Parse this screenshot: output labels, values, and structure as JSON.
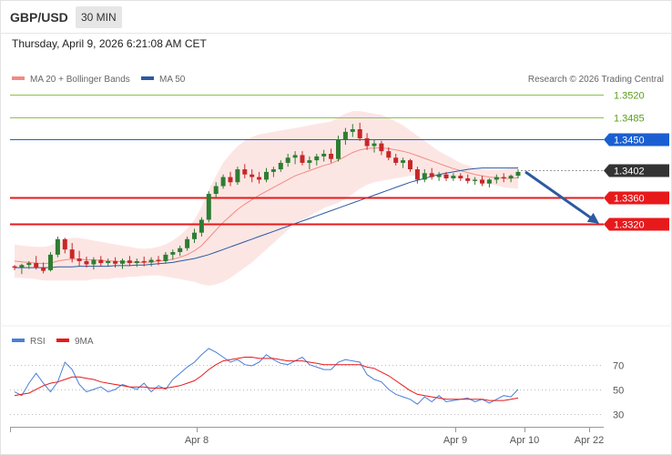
{
  "header": {
    "symbol": "GBP/USD",
    "timeframe": "30 MIN",
    "datetime": "Thursday, April 9, 2026 6:21:08 AM CET"
  },
  "colors": {
    "ma20": "#f28b82",
    "ma50": "#2c5aa0",
    "bull": "#2e7d32",
    "bear": "#c62828",
    "resistance_green": "#8bc34a",
    "pivot_blue": "#1a5fd1",
    "support_red": "#e8191b",
    "current": "#333333",
    "arrow": "#2c5aa0",
    "rsi": "#4a7fd8",
    "rsi_ma": "#e8191b"
  },
  "chart_data": [
    {
      "type": "candlestick",
      "legend": [
        {
          "label": "MA 20 + Bollinger Bands",
          "color": "#f28b82"
        },
        {
          "label": "MA 50",
          "color": "#2c5aa0"
        }
      ],
      "credit": "Research © 2026 Trading Central",
      "ylim": [
        1.3162,
        1.3542
      ],
      "levels": [
        {
          "value": 1.352,
          "label": "1.3520",
          "kind": "resistance",
          "style": "thin-green"
        },
        {
          "value": 1.3485,
          "label": "1.3485",
          "kind": "resistance",
          "style": "thin-green"
        },
        {
          "value": 1.345,
          "label": "1.3450",
          "kind": "pivot",
          "style": "blue"
        },
        {
          "value": 1.3402,
          "label": "1.3402",
          "kind": "current",
          "style": "dotted"
        },
        {
          "value": 1.336,
          "label": "1.3360",
          "kind": "support",
          "style": "red"
        },
        {
          "value": 1.332,
          "label": "1.3320",
          "kind": "support",
          "style": "red"
        }
      ],
      "x_ticks": [
        "Apr 8",
        "Apr 9",
        "Apr 10",
        "Apr 22"
      ],
      "candles": [
        [
          1.3254,
          1.3256,
          1.3248,
          1.3252
        ],
        [
          1.3252,
          1.3258,
          1.3242,
          1.3256
        ],
        [
          1.3256,
          1.3262,
          1.325,
          1.3259
        ],
        [
          1.3259,
          1.327,
          1.3249,
          1.3252
        ],
        [
          1.3252,
          1.326,
          1.3243,
          1.3247
        ],
        [
          1.3248,
          1.3276,
          1.3246,
          1.3272
        ],
        [
          1.3272,
          1.33,
          1.3268,
          1.3296
        ],
        [
          1.3296,
          1.3298,
          1.3274,
          1.328
        ],
        [
          1.328,
          1.329,
          1.326,
          1.3266
        ],
        [
          1.3266,
          1.3278,
          1.3254,
          1.3262
        ],
        [
          1.3262,
          1.3269,
          1.3252,
          1.3257
        ],
        [
          1.3257,
          1.3268,
          1.3249,
          1.3264
        ],
        [
          1.3264,
          1.327,
          1.3254,
          1.3259
        ],
        [
          1.3259,
          1.3266,
          1.3254,
          1.3262
        ],
        [
          1.3262,
          1.3268,
          1.3252,
          1.3258
        ],
        [
          1.3258,
          1.3266,
          1.325,
          1.3263
        ],
        [
          1.3263,
          1.327,
          1.3254,
          1.3259
        ],
        [
          1.3259,
          1.3266,
          1.3253,
          1.3262
        ],
        [
          1.3262,
          1.3269,
          1.3254,
          1.326
        ],
        [
          1.326,
          1.3268,
          1.3254,
          1.3264
        ],
        [
          1.3264,
          1.327,
          1.3256,
          1.3262
        ],
        [
          1.3262,
          1.3276,
          1.3258,
          1.3272
        ],
        [
          1.3272,
          1.328,
          1.3264,
          1.3276
        ],
        [
          1.3276,
          1.3286,
          1.327,
          1.3282
        ],
        [
          1.3282,
          1.33,
          1.3278,
          1.3296
        ],
        [
          1.3296,
          1.3312,
          1.329,
          1.3306
        ],
        [
          1.3306,
          1.333,
          1.33,
          1.3326
        ],
        [
          1.3326,
          1.337,
          1.3322,
          1.3366
        ],
        [
          1.3366,
          1.3384,
          1.336,
          1.3378
        ],
        [
          1.3378,
          1.3396,
          1.3374,
          1.3392
        ],
        [
          1.3392,
          1.34,
          1.3378,
          1.3384
        ],
        [
          1.3384,
          1.3408,
          1.338,
          1.3404
        ],
        [
          1.3404,
          1.3412,
          1.339,
          1.3396
        ],
        [
          1.3396,
          1.3404,
          1.3384,
          1.3392
        ],
        [
          1.3392,
          1.34,
          1.3382,
          1.3388
        ],
        [
          1.3388,
          1.3406,
          1.3384,
          1.34
        ],
        [
          1.34,
          1.3408,
          1.3392,
          1.3404
        ],
        [
          1.3404,
          1.3418,
          1.34,
          1.3414
        ],
        [
          1.3414,
          1.3428,
          1.3408,
          1.3422
        ],
        [
          1.3422,
          1.3432,
          1.3412,
          1.3426
        ],
        [
          1.3426,
          1.3432,
          1.341,
          1.3414
        ],
        [
          1.3414,
          1.3424,
          1.3404,
          1.3418
        ],
        [
          1.3418,
          1.3428,
          1.341,
          1.3424
        ],
        [
          1.3424,
          1.3434,
          1.3416,
          1.3428
        ],
        [
          1.3428,
          1.3436,
          1.3414,
          1.342
        ],
        [
          1.342,
          1.3456,
          1.3416,
          1.345
        ],
        [
          1.345,
          1.3468,
          1.3442,
          1.3462
        ],
        [
          1.3462,
          1.3474,
          1.3454,
          1.3466
        ],
        [
          1.3466,
          1.3476,
          1.3448,
          1.3452
        ],
        [
          1.3452,
          1.346,
          1.3434,
          1.344
        ],
        [
          1.344,
          1.345,
          1.343,
          1.3444
        ],
        [
          1.3444,
          1.3448,
          1.3426,
          1.3432
        ],
        [
          1.3432,
          1.3438,
          1.3418,
          1.3422
        ],
        [
          1.3422,
          1.3428,
          1.341,
          1.3414
        ],
        [
          1.3414,
          1.3422,
          1.3406,
          1.3418
        ],
        [
          1.3418,
          1.342,
          1.34,
          1.3404
        ],
        [
          1.3404,
          1.3408,
          1.3382,
          1.3388
        ],
        [
          1.3388,
          1.3404,
          1.3384,
          1.3398
        ],
        [
          1.3398,
          1.3406,
          1.3388,
          1.3392
        ],
        [
          1.3392,
          1.34,
          1.3386,
          1.3396
        ],
        [
          1.3396,
          1.34,
          1.3386,
          1.339
        ],
        [
          1.339,
          1.3398,
          1.3386,
          1.3394
        ],
        [
          1.3394,
          1.3398,
          1.3386,
          1.339
        ],
        [
          1.339,
          1.3396,
          1.3382,
          1.3386
        ],
        [
          1.3386,
          1.3392,
          1.338,
          1.3388
        ],
        [
          1.3388,
          1.3394,
          1.3378,
          1.3382
        ],
        [
          1.3382,
          1.339,
          1.3376,
          1.3388
        ],
        [
          1.3388,
          1.3396,
          1.3382,
          1.3392
        ],
        [
          1.3392,
          1.3398,
          1.3384,
          1.339
        ],
        [
          1.339,
          1.3396,
          1.3384,
          1.3394
        ],
        [
          1.3394,
          1.3404,
          1.339,
          1.34
        ]
      ],
      "ma20": [
        1.3262,
        1.3261,
        1.326,
        1.3259,
        1.3258,
        1.3259,
        1.3262,
        1.3264,
        1.3265,
        1.3265,
        1.3264,
        1.3264,
        1.3263,
        1.3262,
        1.3262,
        1.3261,
        1.3261,
        1.326,
        1.326,
        1.3261,
        1.3262,
        1.3263,
        1.3265,
        1.3268,
        1.3272,
        1.3278,
        1.3286,
        1.3298,
        1.331,
        1.3322,
        1.3332,
        1.3342,
        1.335,
        1.3357,
        1.3364,
        1.337,
        1.3376,
        1.3382,
        1.3388,
        1.3394,
        1.3398,
        1.3402,
        1.3406,
        1.341,
        1.3413,
        1.3418,
        1.3424,
        1.343,
        1.3434,
        1.3436,
        1.3437,
        1.3437,
        1.3436,
        1.3434,
        1.3432,
        1.3429,
        1.3425,
        1.3421,
        1.3417,
        1.3413,
        1.3409,
        1.3405,
        1.3402,
        1.3399,
        1.3396,
        1.3394,
        1.3392,
        1.3391,
        1.339,
        1.339,
        1.3391
      ],
      "ma50": [
        1.3252,
        1.3252,
        1.3252,
        1.3252,
        1.3252,
        1.3252,
        1.3253,
        1.3253,
        1.3253,
        1.3254,
        1.3254,
        1.3254,
        1.3254,
        1.3254,
        1.3255,
        1.3255,
        1.3255,
        1.3256,
        1.3256,
        1.3257,
        1.3258,
        1.3259,
        1.326,
        1.3262,
        1.3264,
        1.3266,
        1.3269,
        1.3272,
        1.3276,
        1.328,
        1.3284,
        1.3288,
        1.3292,
        1.3296,
        1.33,
        1.3304,
        1.3308,
        1.3312,
        1.3316,
        1.332,
        1.3324,
        1.3328,
        1.3332,
        1.3336,
        1.334,
        1.3344,
        1.3348,
        1.3352,
        1.3356,
        1.336,
        1.3364,
        1.3368,
        1.3372,
        1.3376,
        1.338,
        1.3384,
        1.3387,
        1.339,
        1.3393,
        1.3396,
        1.3398,
        1.34,
        1.3402,
        1.3404,
        1.3405,
        1.3406,
        1.3406,
        1.3406,
        1.3406,
        1.3406,
        1.3406
      ],
      "bb_upper": [
        1.3288,
        1.3286,
        1.3285,
        1.3284,
        1.3284,
        1.3286,
        1.3292,
        1.3296,
        1.3298,
        1.3298,
        1.3296,
        1.3294,
        1.3292,
        1.329,
        1.3288,
        1.3286,
        1.3284,
        1.3282,
        1.3281,
        1.3282,
        1.3284,
        1.3288,
        1.3294,
        1.3302,
        1.3312,
        1.3326,
        1.3346,
        1.3372,
        1.3394,
        1.3414,
        1.3428,
        1.344,
        1.3448,
        1.3454,
        1.3458,
        1.346,
        1.3462,
        1.3464,
        1.3466,
        1.3468,
        1.347,
        1.3472,
        1.3474,
        1.3476,
        1.3478,
        1.3484,
        1.349,
        1.3494,
        1.3494,
        1.3492,
        1.349,
        1.3488,
        1.3484,
        1.3478,
        1.3472,
        1.3464,
        1.3456,
        1.3448,
        1.344,
        1.3432,
        1.3426,
        1.342,
        1.3414,
        1.341,
        1.3406,
        1.3404,
        1.3403,
        1.3403,
        1.3404,
        1.3405,
        1.3408
      ],
      "bb_lower": [
        1.3236,
        1.3236,
        1.3235,
        1.3234,
        1.3232,
        1.3232,
        1.3232,
        1.3232,
        1.3232,
        1.3232,
        1.3232,
        1.3234,
        1.3234,
        1.3234,
        1.3236,
        1.3236,
        1.3238,
        1.3238,
        1.3239,
        1.324,
        1.324,
        1.3238,
        1.3236,
        1.3234,
        1.3232,
        1.323,
        1.3226,
        1.3224,
        1.3226,
        1.323,
        1.3236,
        1.3244,
        1.3252,
        1.326,
        1.327,
        1.328,
        1.329,
        1.33,
        1.331,
        1.332,
        1.3326,
        1.3332,
        1.3338,
        1.3344,
        1.3348,
        1.3352,
        1.3358,
        1.3366,
        1.3374,
        1.338,
        1.3384,
        1.3386,
        1.3388,
        1.339,
        1.3392,
        1.3394,
        1.3394,
        1.3394,
        1.3394,
        1.3394,
        1.3392,
        1.339,
        1.339,
        1.3388,
        1.3386,
        1.3384,
        1.3381,
        1.3379,
        1.3376,
        1.3375,
        1.3374
      ],
      "forecast_arrow": {
        "from": 1.34,
        "to": 1.332,
        "direction": "down"
      }
    },
    {
      "type": "line",
      "legend": [
        {
          "label": "RSI",
          "color": "#4a7fd8"
        },
        {
          "label": "9MA",
          "color": "#e8191b"
        }
      ],
      "ylim": [
        22,
        83
      ],
      "y_ticks": [
        {
          "value": 70,
          "label": "70"
        },
        {
          "value": 50,
          "label": "50"
        },
        {
          "value": 30,
          "label": "30"
        }
      ],
      "series": [
        {
          "name": "RSI",
          "values": [
            48,
            45,
            55,
            63,
            55,
            48,
            56,
            72,
            66,
            54,
            48,
            50,
            52,
            48,
            50,
            54,
            52,
            50,
            55,
            48,
            53,
            50,
            58,
            63,
            68,
            72,
            78,
            83,
            80,
            76,
            72,
            74,
            70,
            69,
            72,
            78,
            74,
            71,
            70,
            73,
            76,
            70,
            68,
            66,
            66,
            72,
            74,
            73,
            72,
            62,
            58,
            56,
            50,
            46,
            44,
            42,
            38,
            44,
            40,
            45,
            40,
            41,
            42,
            43,
            40,
            42,
            39,
            42,
            45,
            44,
            50
          ]
        },
        {
          "name": "9MA",
          "values": [
            45,
            46,
            47,
            50,
            53,
            55,
            56,
            58,
            60,
            60,
            59,
            58,
            56,
            55,
            54,
            53,
            52,
            52,
            52,
            51,
            51,
            51,
            52,
            53,
            55,
            57,
            61,
            66,
            70,
            73,
            74,
            75,
            76,
            76,
            75,
            75,
            75,
            74,
            73,
            73,
            73,
            72,
            71,
            70,
            70,
            70,
            70,
            70,
            70,
            68,
            67,
            64,
            61,
            57,
            53,
            49,
            46,
            45,
            44,
            43,
            42,
            42,
            42,
            42,
            42,
            42,
            41,
            41,
            41,
            42,
            43
          ]
        }
      ]
    }
  ]
}
